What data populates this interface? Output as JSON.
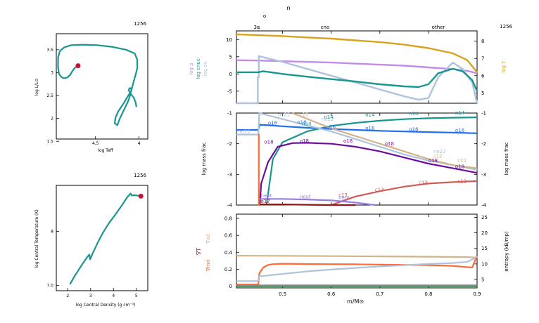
{
  "colors": {
    "teal": "#1a9690",
    "red": "#c8143c",
    "gold": "#d9a21c",
    "lilac": "#c38ce6",
    "lightblue": "#aec3dc",
    "blue": "#1f6ef0",
    "purple": "#6a0ea0",
    "salmon": "#d25a55",
    "orange": "#ff6a37",
    "tan": "#d2b48c",
    "violet": "#9a7ae6",
    "darkred": "#8b1a1a",
    "green": "#1d8a3a",
    "gray": "#8a8a8a"
  },
  "chart_data": [
    {
      "id": "hr",
      "type": "line",
      "model_number": "1256",
      "xlabel": "log Teff",
      "ylabel": "log L/L⊙",
      "xlim": [
        4.95,
        3.9
      ],
      "ylim": [
        1.55,
        3.85
      ],
      "xticks": [
        "4.5",
        "4"
      ],
      "yticks": [
        "1.5",
        "2",
        "2.5",
        "3",
        "3.5"
      ],
      "track_x": [
        4.7,
        4.74,
        4.77,
        4.79,
        4.82,
        4.85,
        4.87,
        4.9,
        4.92,
        4.93,
        4.93,
        4.91,
        4.86,
        4.78,
        4.65,
        4.48,
        4.3,
        4.15,
        4.05,
        4.02,
        4.02,
        4.04,
        4.06,
        4.09,
        4.12,
        4.17,
        4.22,
        4.25,
        4.28,
        4.27,
        4.24,
        4.18,
        4.13,
        4.09,
        4.09,
        4.11,
        4.12,
        4.1,
        4.06,
        4.04,
        4.03
      ],
      "track_y": [
        3.15,
        3.1,
        3.02,
        2.95,
        2.9,
        2.88,
        2.88,
        2.92,
        2.98,
        3.12,
        3.33,
        3.47,
        3.55,
        3.6,
        3.61,
        3.6,
        3.56,
        3.5,
        3.42,
        3.28,
        3.1,
        2.95,
        2.82,
        2.6,
        2.4,
        2.2,
        2.0,
        1.85,
        1.9,
        2.02,
        2.15,
        2.32,
        2.48,
        2.6,
        2.66,
        2.66,
        2.62,
        2.55,
        2.45,
        2.35,
        2.25
      ],
      "current_point": [
        4.7,
        3.15
      ]
    },
    {
      "id": "center",
      "type": "line",
      "model_number": "1256",
      "xlabel": "log Central Density (g cm⁻³)",
      "ylabel": "log Central Temperature (K)",
      "xlim": [
        1.5,
        5.5
      ],
      "ylim": [
        6.9,
        8.85
      ],
      "xticks": [
        "2",
        "3",
        "4",
        "5"
      ],
      "yticks": [
        "7.0",
        "8"
      ],
      "track_x": [
        2.1,
        2.3,
        2.5,
        2.7,
        2.85,
        2.95,
        2.98,
        3.0,
        3.1,
        3.3,
        3.55,
        3.8,
        4.1,
        4.4,
        4.6,
        4.75,
        4.8,
        4.9,
        5.05,
        5.2
      ],
      "track_y": [
        7.02,
        7.17,
        7.3,
        7.43,
        7.52,
        7.57,
        7.48,
        7.5,
        7.6,
        7.78,
        7.98,
        8.15,
        8.32,
        8.5,
        8.63,
        8.7,
        8.66,
        8.67,
        8.66,
        8.65
      ],
      "current_point": [
        5.2,
        8.65
      ]
    },
    {
      "id": "profiles",
      "type": "line",
      "model_number": "1256",
      "xlabel": "m/M⊙",
      "xlim": [
        0.405,
        0.9
      ],
      "xticks": [
        "0.5",
        "0.6",
        "0.7",
        "0.8",
        "0.9"
      ],
      "top_label": "n",
      "top_label_sub": "o",
      "burn_labels": [
        "3α",
        "cno",
        "other"
      ],
      "panel_top": {
        "ylim": [
          -8.5,
          12.5
        ],
        "yticks_left": [
          "-5",
          "0",
          "5",
          "10"
        ],
        "yticks_right": [
          "5",
          "6",
          "7",
          "8"
        ],
        "ylim_right": [
          4.4,
          8.6
        ],
        "left_labels": [
          "log ρ",
          "log εnuc",
          "log σν"
        ],
        "right_label": "log T",
        "series": [
          {
            "color": "gold",
            "right_axis": true,
            "x": [
              0.405,
              0.45,
              0.5,
              0.55,
              0.6,
              0.65,
              0.7,
              0.75,
              0.8,
              0.85,
              0.88,
              0.9
            ],
            "y": [
              8.4,
              8.35,
              8.3,
              8.22,
              8.15,
              8.05,
              7.95,
              7.8,
              7.6,
              7.3,
              6.9,
              6.2
            ]
          },
          {
            "color": "lilac",
            "x": [
              0.405,
              0.45,
              0.5,
              0.55,
              0.6,
              0.65,
              0.7,
              0.75,
              0.8,
              0.85,
              0.88,
              0.9
            ],
            "y": [
              4.0,
              3.9,
              3.7,
              3.5,
              3.3,
              3.0,
              2.7,
              2.4,
              1.9,
              1.4,
              0.9,
              0.2
            ]
          },
          {
            "color": "lightblue",
            "x": [
              0.405,
              0.449,
              0.449,
              0.451,
              0.451,
              0.47,
              0.5,
              0.55,
              0.6,
              0.65,
              0.7,
              0.75,
              0.78,
              0.8,
              0.82,
              0.85,
              0.87,
              0.89,
              0.9
            ],
            "y": [
              -8.5,
              -8.5,
              -1,
              -1,
              5.2,
              4.5,
              3.5,
              1.5,
              -0.5,
              -2.5,
              -4.5,
              -6.5,
              -7.5,
              -7,
              -1,
              3.3,
              1.5,
              -2.5,
              -8.5
            ]
          },
          {
            "color": "teal",
            "x": [
              0.405,
              0.45,
              0.46,
              0.5,
              0.55,
              0.6,
              0.65,
              0.7,
              0.75,
              0.78,
              0.8,
              0.82,
              0.85,
              0.87,
              0.89,
              0.9
            ],
            "y": [
              0.5,
              0.5,
              0.8,
              0.0,
              -0.8,
              -1.5,
              -2.2,
              -3.0,
              -3.6,
              -3.8,
              -3.0,
              0.2,
              1.5,
              0.8,
              -1.8,
              -5
            ]
          }
        ]
      },
      "panel_mid": {
        "ylim": [
          -4,
          -1
        ],
        "yticks": [
          "-4",
          "-3",
          "-2",
          "-1"
        ],
        "ylabel": "log mass frac",
        "series": [
          {
            "name": "n14",
            "color": "teal",
            "x": [
              0.467,
              0.48,
              0.5,
              0.55,
              0.6,
              0.65,
              0.7,
              0.75,
              0.8,
              0.85,
              0.9
            ],
            "y": [
              -4,
              -2.5,
              -1.95,
              -1.6,
              -1.42,
              -1.32,
              -1.25,
              -1.2,
              -1.17,
              -1.15,
              -1.14
            ]
          },
          {
            "name": "o16",
            "color": "blue",
            "x": [
              0.405,
              0.45,
              0.453,
              0.5,
              0.55,
              0.6,
              0.65,
              0.7,
              0.75,
              0.8,
              0.85,
              0.9
            ],
            "y": [
              -1.55,
              -1.55,
              -1.38,
              -1.43,
              -1.48,
              -1.52,
              -1.55,
              -1.58,
              -1.6,
              -1.62,
              -1.64,
              -1.66
            ]
          },
          {
            "name": "o18",
            "color": "purple",
            "x": [
              0.453,
              0.456,
              0.46,
              0.47,
              0.49,
              0.52,
              0.55,
              0.6,
              0.65,
              0.7,
              0.75,
              0.8,
              0.85,
              0.9
            ],
            "y": [
              -4,
              -3.3,
              -3.1,
              -2.6,
              -2.1,
              -1.98,
              -1.97,
              -2.0,
              -2.1,
              -2.25,
              -2.45,
              -2.65,
              -2.8,
              -2.95
            ]
          },
          {
            "name": "ne22",
            "color": "lightblue",
            "x": [
              0.405,
              0.45,
              0.452,
              0.5,
              0.55,
              0.6,
              0.65,
              0.7,
              0.75,
              0.8,
              0.85,
              0.9
            ],
            "y": [
              -1.7,
              -1.7,
              -1.0,
              -1.2,
              -1.4,
              -1.6,
              -1.85,
              -2.1,
              -2.35,
              -2.55,
              -2.7,
              -2.85
            ]
          },
          {
            "name": "c12",
            "color": "tan",
            "x": [
              0.52,
              0.56,
              0.6,
              0.65,
              0.7,
              0.75,
              0.8,
              0.85,
              0.9
            ],
            "y": [
              -1.0,
              -1.25,
              -1.5,
              -1.75,
              -2.0,
              -2.25,
              -2.5,
              -2.7,
              -2.8
            ]
          },
          {
            "name": "c13",
            "color": "salmon",
            "x": [
              0.6,
              0.65,
              0.7,
              0.75,
              0.8,
              0.85,
              0.9
            ],
            "y": [
              -4,
              -3.72,
              -3.55,
              -3.4,
              -3.3,
              -3.25,
              -3.22
            ]
          },
          {
            "name": "neut",
            "color": "violet",
            "x": [
              0.45,
              0.5,
              0.55,
              0.6,
              0.65,
              0.69
            ],
            "y": [
              -3.8,
              -3.8,
              -3.82,
              -3.85,
              -3.92,
              -4
            ]
          },
          {
            "name": "o17",
            "color": "darkred",
            "x": [
              0.45,
              0.5,
              0.55,
              0.6,
              0.65
            ],
            "y": [
              -3.98,
              -3.98,
              -3.99,
              -4,
              -4
            ]
          },
          {
            "name": "he4",
            "color": "orange",
            "x": [
              0.45,
              0.451,
              0.451,
              0.453
            ],
            "y": [
              -1.7,
              -1.7,
              -4,
              -4
            ]
          }
        ],
        "labels": [
          {
            "text": "ne22",
            "color": "lightblue",
            "x": 0.408,
            "y": -1.65
          },
          {
            "text": "ne22",
            "color": "lightblue",
            "x": 0.49,
            "y": -1.1
          },
          {
            "text": "ne22",
            "color": "lightblue",
            "x": 0.58,
            "y": -1.25
          },
          {
            "text": "ne22",
            "color": "lightblue",
            "x": 0.81,
            "y": -2.3
          },
          {
            "text": "n14",
            "color": "teal",
            "x": 0.585,
            "y": -1.18
          },
          {
            "text": "n14",
            "color": "teal",
            "x": 0.67,
            "y": -1.12
          },
          {
            "text": "n14",
            "color": "teal",
            "x": 0.76,
            "y": -1.07
          },
          {
            "text": "n14",
            "color": "teal",
            "x": 0.855,
            "y": -1.05
          },
          {
            "text": "n14",
            "color": "teal",
            "x": 0.54,
            "y": -1.4
          },
          {
            "text": "o16",
            "color": "blue",
            "x": 0.47,
            "y": -1.38
          },
          {
            "text": "o16",
            "color": "blue",
            "x": 0.59,
            "y": -1.5
          },
          {
            "text": "o16",
            "color": "blue",
            "x": 0.67,
            "y": -1.55
          },
          {
            "text": "o16",
            "color": "blue",
            "x": 0.76,
            "y": -1.58
          },
          {
            "text": "o16",
            "color": "blue",
            "x": 0.855,
            "y": -1.62
          },
          {
            "text": "o16",
            "color": "blue",
            "x": 0.53,
            "y": -1.35
          },
          {
            "text": "o18",
            "color": "purple",
            "x": 0.462,
            "y": -2.0
          },
          {
            "text": "o18",
            "color": "purple",
            "x": 0.535,
            "y": -1.96
          },
          {
            "text": "o18",
            "color": "purple",
            "x": 0.625,
            "y": -1.96
          },
          {
            "text": "o18",
            "color": "purple",
            "x": 0.71,
            "y": -2.05
          },
          {
            "text": "o18",
            "color": "purple",
            "x": 0.8,
            "y": -2.6
          },
          {
            "text": "o18",
            "color": "purple",
            "x": 0.855,
            "y": -2.8
          },
          {
            "text": "c12",
            "color": "tan",
            "x": 0.535,
            "y": -1.1
          },
          {
            "text": "c12",
            "color": "tan",
            "x": 0.71,
            "y": -2.1
          },
          {
            "text": "c12",
            "color": "tan",
            "x": 0.81,
            "y": -2.45
          },
          {
            "text": "c12",
            "color": "tan",
            "x": 0.86,
            "y": -2.6
          },
          {
            "text": "c13",
            "color": "salmon",
            "x": 0.615,
            "y": -3.72
          },
          {
            "text": "c13",
            "color": "salmon",
            "x": 0.69,
            "y": -3.55
          },
          {
            "text": "c13",
            "color": "salmon",
            "x": 0.78,
            "y": -3.33
          },
          {
            "text": "c13",
            "color": "salmon",
            "x": 0.86,
            "y": -3.28
          },
          {
            "text": "neut",
            "color": "violet",
            "x": 0.455,
            "y": -3.75
          },
          {
            "text": "neut",
            "color": "violet",
            "x": 0.535,
            "y": -3.78
          },
          {
            "text": "neut",
            "color": "violet",
            "x": 0.615,
            "y": -3.82
          },
          {
            "text": "o17",
            "color": "darkred",
            "x": 0.455,
            "y": -3.93
          }
        ]
      },
      "panel_bot": {
        "ylim": [
          -0.02,
          0.85
        ],
        "yticks_left": [
          "0",
          "0.2",
          "0.4",
          "0.6",
          "0.8"
        ],
        "ylim_right": [
          2.3,
          26
        ],
        "yticks_right": [
          "5",
          "10",
          "15",
          "20",
          "25"
        ],
        "left_labels": [
          "∇ad",
          "∇T",
          "∇rad"
        ],
        "right_label": "entropy (kB/mp)",
        "series": [
          {
            "color": "tan",
            "x": [
              0.405,
              0.5,
              0.6,
              0.7,
              0.8,
              0.88,
              0.9
            ],
            "y": [
              0.36,
              0.358,
              0.355,
              0.352,
              0.348,
              0.344,
              0.338
            ]
          },
          {
            "color": "orange",
            "x": [
              0.405,
              0.45,
              0.452,
              0.46,
              0.47,
              0.48,
              0.5,
              0.55,
              0.6,
              0.65,
              0.7,
              0.75,
              0.8,
              0.85,
              0.87,
              0.89,
              0.895,
              0.9
            ],
            "y": [
              0.02,
              0.02,
              0.15,
              0.22,
              0.25,
              0.26,
              0.265,
              0.262,
              0.26,
              0.258,
              0.255,
              0.252,
              0.248,
              0.24,
              0.23,
              0.22,
              0.29,
              0.36
            ]
          },
          {
            "color": "lightblue",
            "right_axis": true,
            "x": [
              0.405,
              0.45,
              0.451,
              0.47,
              0.5,
              0.55,
              0.6,
              0.65,
              0.7,
              0.75,
              0.8,
              0.85,
              0.88,
              0.9
            ],
            "y": [
              4.5,
              4.5,
              6.0,
              6.3,
              6.8,
              7.6,
              8.2,
              8.7,
              9.2,
              9.6,
              10,
              10.3,
              10.7,
              12.2
            ]
          },
          {
            "color": "green",
            "x": [
              0.405,
              0.9
            ],
            "y": [
              0.0,
              0.0
            ]
          },
          {
            "color": "gray",
            "x": [
              0.405,
              0.9
            ],
            "y": [
              0.01,
              0.01
            ]
          }
        ]
      }
    }
  ]
}
